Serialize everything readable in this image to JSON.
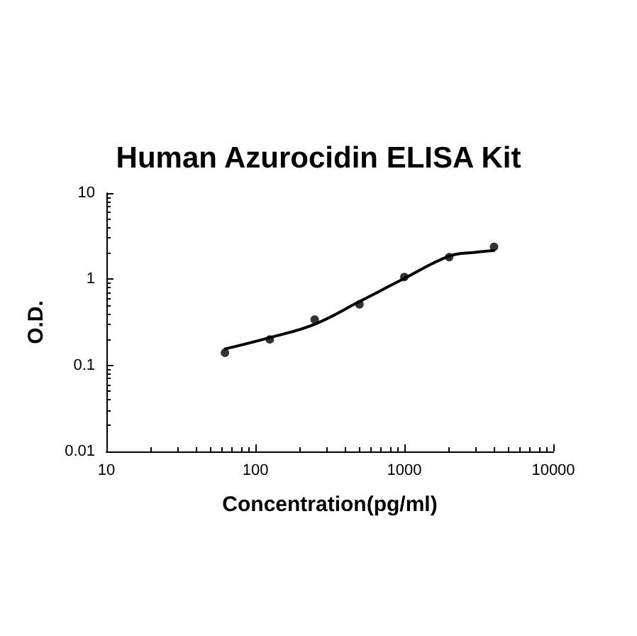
{
  "chart_data": {
    "type": "scatter",
    "title": "Human Azurocidin ELISA Kit",
    "xlabel": "Concentration(pg/ml)",
    "ylabel": "O.D.",
    "log": "xy",
    "xlim": [
      10,
      10000
    ],
    "xticks": [
      10,
      100,
      1000,
      10000
    ],
    "ylim": [
      0.01,
      10
    ],
    "yticks": [
      0.01,
      0.1,
      1,
      10
    ],
    "grid": false,
    "marker": "circle",
    "series": [
      {
        "color": "#000000",
        "x": [
          62.5,
          125,
          250,
          500,
          1000,
          2000,
          4000
        ],
        "values": [
          0.14,
          0.2,
          0.34,
          0.51,
          1.06,
          1.8,
          2.38
        ]
      },
      {
        "type": "line",
        "color": "#000000",
        "line_style": "solid",
        "marker": "none",
        "x": [
          62.5,
          125,
          250,
          500,
          1000,
          2000,
          3000,
          4000
        ],
        "values": [
          0.155,
          0.21,
          0.3,
          0.55,
          1.02,
          1.85,
          2.05,
          2.15
        ]
      }
    ]
  }
}
